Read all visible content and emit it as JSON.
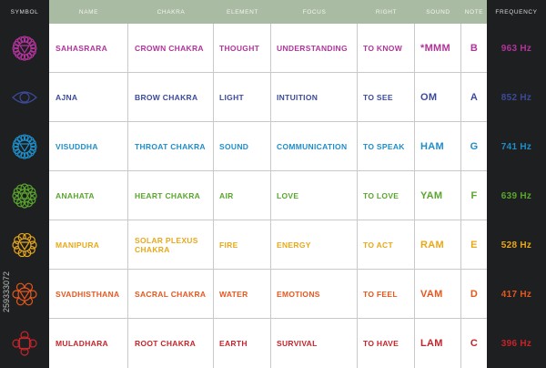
{
  "headers": [
    "SYMBOL",
    "NAME",
    "CHAKRA",
    "ELEMENT",
    "FOCUS",
    "RIGHT",
    "SOUND",
    "NOTE",
    "FREQUENCY"
  ],
  "side_id": "259333072",
  "rows": [
    {
      "name": "SAHASRARA",
      "chakra": "CROWN CHAKRA",
      "element": "THOUGHT",
      "focus": "UNDERSTANDING",
      "right": "TO KNOW",
      "sound": "*MMM",
      "note": "B",
      "frequency": "963 Hz",
      "color": "#b0349a",
      "icon": "crown-chakra-icon"
    },
    {
      "name": "AJNA",
      "chakra": "BROW CHAKRA",
      "element": "LIGHT",
      "focus": "INTUITION",
      "right": "TO SEE",
      "sound": "OM",
      "note": "A",
      "frequency": "852 Hz",
      "color": "#3c4a9a",
      "icon": "third-eye-chakra-icon"
    },
    {
      "name": "VISUDDHA",
      "chakra": "THROAT CHAKRA",
      "element": "SOUND",
      "focus": "COMMUNICATION",
      "right": "TO SPEAK",
      "sound": "HAM",
      "note": "G",
      "frequency": "741 Hz",
      "color": "#1f8dc8",
      "icon": "throat-chakra-icon"
    },
    {
      "name": "ANAHATA",
      "chakra": "HEART CHAKRA",
      "element": "AIR",
      "focus": "LOVE",
      "right": "TO LOVE",
      "sound": "YAM",
      "note": "F",
      "frequency": "639 Hz",
      "color": "#5aa52e",
      "icon": "heart-chakra-icon"
    },
    {
      "name": "MANIPURA",
      "chakra": "SOLAR PLEXUS CHAKRA",
      "element": "FIRE",
      "focus": "ENERGY",
      "right": "TO ACT",
      "sound": "RAM",
      "note": "E",
      "frequency": "528 Hz",
      "color": "#e8a818",
      "icon": "solar-plexus-chakra-icon"
    },
    {
      "name": "SVADHISTHANA",
      "chakra": "SACRAL CHAKRA",
      "element": "WATER",
      "focus": "EMOTIONS",
      "right": "TO FEEL",
      "sound": "VAM",
      "note": "D",
      "frequency": "417 Hz",
      "color": "#e4571e",
      "icon": "sacral-chakra-icon"
    },
    {
      "name": "MULADHARA",
      "chakra": "ROOT CHAKRA",
      "element": "EARTH",
      "focus": "SURVIVAL",
      "right": "TO HAVE",
      "sound": "LAM",
      "note": "C",
      "frequency": "396 Hz",
      "color": "#c4242b",
      "icon": "root-chakra-icon"
    }
  ]
}
